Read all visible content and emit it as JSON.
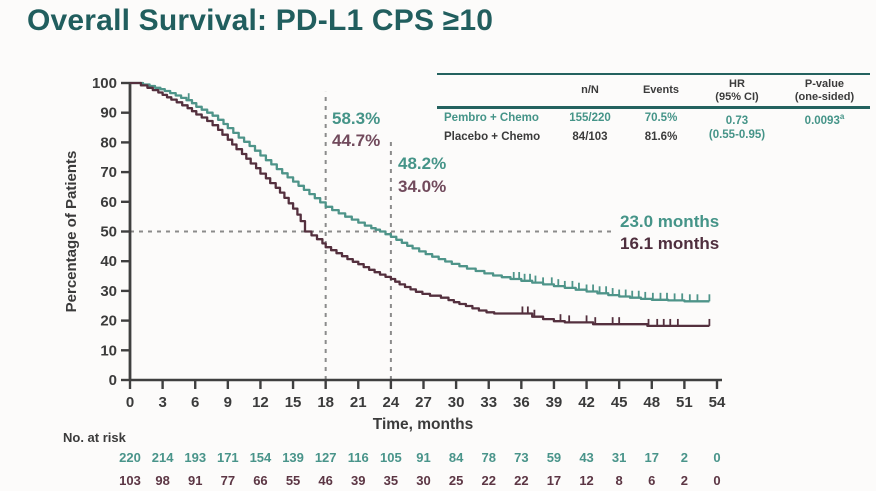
{
  "title": "Overall Survival: PD-L1 CPS ≥10",
  "colors": {
    "title": "#215e5e",
    "pembro_line": "#4e9489",
    "placebo_line": "#54303e",
    "pembro_text": "#459488",
    "placebo_text_light": "#714a5c",
    "placebo_text_dark": "#4f2f3e",
    "axis_text": "#3b3b3b",
    "dashed_line": "#8b8b8b",
    "table_rule": "#24625f"
  },
  "stats_table": {
    "col_nN": "n/N",
    "col_events": "Events",
    "col_hr_line1": "HR",
    "col_hr_line2": "(95% CI)",
    "col_p_line1": "P-value",
    "col_p_line2": "(one-sided)",
    "rows": [
      {
        "label": "Pembro + Chemo",
        "n_N": "155/220",
        "events": "70.5%"
      },
      {
        "label": "Placebo + Chemo",
        "n_N": "84/103",
        "events": "81.6%"
      }
    ],
    "hr": "0.73",
    "hr_ci": "(0.55-0.95)",
    "p_value": "0.0093",
    "p_sup": "a"
  },
  "annotations": {
    "pembro_18mo": "58.3%",
    "placebo_18mo": "44.7%",
    "pembro_24mo": "48.2%",
    "placebo_24mo": "34.0%",
    "pembro_median": "23.0 months",
    "placebo_median": "16.1 months"
  },
  "chart_data": {
    "type": "line",
    "subtype": "kaplan-meier-step",
    "title": "Overall Survival: PD-L1 CPS ≥10",
    "xlabel": "Time, months",
    "ylabel": "Percentage of Patients",
    "xlim": [
      0,
      54
    ],
    "ylim": [
      0,
      100
    ],
    "x_ticks": [
      0,
      3,
      6,
      9,
      12,
      15,
      18,
      21,
      24,
      27,
      30,
      33,
      36,
      39,
      42,
      45,
      48,
      51,
      54
    ],
    "y_ticks": [
      0,
      10,
      20,
      30,
      40,
      50,
      60,
      70,
      80,
      90,
      100
    ],
    "grid": false,
    "reference_lines": {
      "vertical": [
        {
          "month": 18,
          "top_percent": 97
        },
        {
          "month": 24,
          "top_percent": 81
        }
      ],
      "horizontal": {
        "percent": 50,
        "from_month": 0,
        "to_month": 44.3
      }
    },
    "series": [
      {
        "name": "Pembro + Chemo",
        "color": "#4e9489",
        "median_months": 23.0,
        "rate_18mo_percent": 58.3,
        "rate_24mo_percent": 48.2,
        "end_month": 53.3,
        "steps": [
          [
            0,
            100
          ],
          [
            1.2,
            99.5
          ],
          [
            1.8,
            99
          ],
          [
            2.3,
            98.4
          ],
          [
            2.8,
            97.9
          ],
          [
            3.2,
            97.3
          ],
          [
            3.7,
            96.6
          ],
          [
            4.2,
            95.8
          ],
          [
            4.7,
            95
          ],
          [
            5.2,
            94.2
          ],
          [
            5.7,
            93.2
          ],
          [
            6.1,
            92
          ],
          [
            6.6,
            91
          ],
          [
            7.1,
            90
          ],
          [
            7.6,
            89
          ],
          [
            8.1,
            87.6
          ],
          [
            8.6,
            86.2
          ],
          [
            9,
            84.8
          ],
          [
            9.5,
            83.2
          ],
          [
            10,
            81.6
          ],
          [
            10.5,
            80.2
          ],
          [
            11,
            78.8
          ],
          [
            11.5,
            77.2
          ],
          [
            12,
            75.6
          ],
          [
            12.5,
            74
          ],
          [
            13,
            72.6
          ],
          [
            13.5,
            71
          ],
          [
            14,
            69.6
          ],
          [
            14.5,
            68.2
          ],
          [
            15,
            66.8
          ],
          [
            15.5,
            65.4
          ],
          [
            16,
            64
          ],
          [
            16.5,
            62.6
          ],
          [
            17,
            61.2
          ],
          [
            17.5,
            59.8
          ],
          [
            18,
            58.3
          ],
          [
            18.6,
            57.2
          ],
          [
            19.2,
            56.1
          ],
          [
            19.8,
            55
          ],
          [
            20.4,
            54
          ],
          [
            21,
            53
          ],
          [
            21.6,
            52
          ],
          [
            22.2,
            51.1
          ],
          [
            22.6,
            50.6
          ],
          [
            23,
            50
          ],
          [
            23.5,
            49.1
          ],
          [
            24,
            48.2
          ],
          [
            24.5,
            47.2
          ],
          [
            25,
            46.2
          ],
          [
            25.5,
            45.2
          ],
          [
            26,
            44.3
          ],
          [
            26.6,
            43.3
          ],
          [
            27.2,
            42.4
          ],
          [
            27.8,
            41.5
          ],
          [
            28.4,
            40.7
          ],
          [
            29,
            39.9
          ],
          [
            29.6,
            39.1
          ],
          [
            30.3,
            38.3
          ],
          [
            31,
            37.5
          ],
          [
            31.8,
            36.7
          ],
          [
            32.6,
            35.9
          ],
          [
            33.4,
            35.2
          ],
          [
            34.2,
            34.6
          ],
          [
            35,
            34
          ],
          [
            36,
            33.4
          ],
          [
            37,
            32.8
          ],
          [
            38,
            32.2
          ],
          [
            39,
            31.6
          ],
          [
            40,
            31
          ],
          [
            41,
            30.4
          ],
          [
            42,
            29.8
          ],
          [
            43,
            29.2
          ],
          [
            44,
            28.6
          ],
          [
            45,
            28.1
          ],
          [
            46,
            27.7
          ],
          [
            47,
            27.3
          ],
          [
            48,
            27
          ],
          [
            49.5,
            26.8
          ],
          [
            51,
            26.5
          ]
        ],
        "censor_months": [
          5.4,
          35.3,
          35.8,
          36.3,
          36.8,
          37.3,
          38,
          38.8,
          39.4,
          40,
          40.7,
          41.3,
          42,
          42.6,
          43.2,
          43.8,
          44.4,
          45,
          45.6,
          46.2,
          46.8,
          47.4,
          48.1,
          48.8,
          49.4,
          50.1,
          50.8,
          51.5,
          52.2,
          53.3
        ]
      },
      {
        "name": "Placebo + Chemo",
        "color": "#54303e",
        "median_months": 16.1,
        "rate_18mo_percent": 44.7,
        "rate_24mo_percent": 34.0,
        "end_month": 53.3,
        "steps": [
          [
            0,
            100
          ],
          [
            1,
            99.2
          ],
          [
            1.6,
            98.4
          ],
          [
            2.1,
            97.6
          ],
          [
            2.6,
            96.8
          ],
          [
            3,
            96
          ],
          [
            3.4,
            95.2
          ],
          [
            3.8,
            94.4
          ],
          [
            4.3,
            93.5
          ],
          [
            4.8,
            92.5
          ],
          [
            5.3,
            91.5
          ],
          [
            5.7,
            90.5
          ],
          [
            6.1,
            89.4
          ],
          [
            6.6,
            88.4
          ],
          [
            7.1,
            87.2
          ],
          [
            7.6,
            85.8
          ],
          [
            8.1,
            84.2
          ],
          [
            8.5,
            82.6
          ],
          [
            9,
            80.9
          ],
          [
            9.4,
            79.3
          ],
          [
            9.8,
            77.7
          ],
          [
            10.3,
            76.1
          ],
          [
            10.7,
            74.5
          ],
          [
            11.1,
            72.9
          ],
          [
            11.6,
            71.3
          ],
          [
            12,
            69.5
          ],
          [
            12.5,
            67.9
          ],
          [
            12.9,
            66.3
          ],
          [
            13.4,
            64.7
          ],
          [
            13.8,
            63.1
          ],
          [
            14.2,
            61.3
          ],
          [
            14.6,
            59.5
          ],
          [
            15,
            57.7
          ],
          [
            15.4,
            55.7
          ],
          [
            15.7,
            53.5
          ],
          [
            16.1,
            50
          ],
          [
            16.7,
            48.7
          ],
          [
            17.2,
            47.4
          ],
          [
            17.7,
            46
          ],
          [
            18,
            44.7
          ],
          [
            18.5,
            43.7
          ],
          [
            19,
            42.7
          ],
          [
            19.5,
            41.7
          ],
          [
            20,
            40.7
          ],
          [
            20.5,
            39.8
          ],
          [
            21,
            39
          ],
          [
            21.5,
            38
          ],
          [
            22,
            37.1
          ],
          [
            22.5,
            36.3
          ],
          [
            23,
            35.5
          ],
          [
            23.5,
            34.7
          ],
          [
            24,
            34
          ],
          [
            24.4,
            33.1
          ],
          [
            24.8,
            32.2
          ],
          [
            25.3,
            31.3
          ],
          [
            25.8,
            30.5
          ],
          [
            26.3,
            29.7
          ],
          [
            26.9,
            29
          ],
          [
            27.6,
            28.4
          ],
          [
            28.6,
            27.7
          ],
          [
            29.3,
            26.9
          ],
          [
            29.8,
            26.2
          ],
          [
            30.3,
            25.6
          ],
          [
            30.9,
            24.9
          ],
          [
            31.5,
            24.1
          ],
          [
            32.1,
            23.4
          ],
          [
            32.8,
            22.8
          ],
          [
            33.5,
            22.4
          ],
          [
            37,
            21.3
          ],
          [
            38,
            20.5
          ],
          [
            39,
            19.8
          ],
          [
            40,
            19.4
          ],
          [
            42.6,
            18.8
          ],
          [
            47.6,
            18.2
          ]
        ],
        "censor_months": [
          36.1,
          36.6,
          37.2,
          39.6,
          40.4,
          42,
          42.8,
          44.4,
          45,
          47.7,
          48.5,
          49.1,
          49.7,
          50.4,
          53.3
        ]
      }
    ],
    "no_at_risk": {
      "label": "No. at risk",
      "times": [
        0,
        3,
        6,
        9,
        12,
        15,
        18,
        21,
        24,
        27,
        30,
        33,
        36,
        39,
        42,
        45,
        48,
        51,
        54
      ],
      "pembro": [
        220,
        214,
        193,
        171,
        154,
        139,
        127,
        116,
        105,
        91,
        84,
        78,
        73,
        59,
        43,
        31,
        17,
        2,
        0
      ],
      "placebo": [
        103,
        98,
        91,
        77,
        66,
        55,
        46,
        39,
        35,
        30,
        25,
        22,
        22,
        17,
        12,
        8,
        6,
        2,
        0
      ]
    }
  }
}
